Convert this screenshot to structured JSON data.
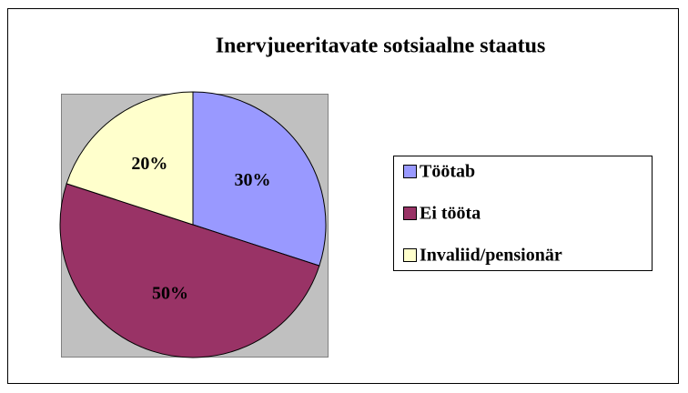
{
  "chart_data": {
    "type": "pie",
    "title": "Inervjueeritavate sotsiaalne staatus",
    "categories": [
      "Töötab",
      "Ei tööta",
      "Invaliid/pensionär"
    ],
    "values": [
      30,
      50,
      20
    ],
    "value_labels": [
      "30%",
      "50%",
      "20%"
    ],
    "colors": [
      "#9999ff",
      "#993366",
      "#ffffcc"
    ],
    "legend": "right"
  }
}
